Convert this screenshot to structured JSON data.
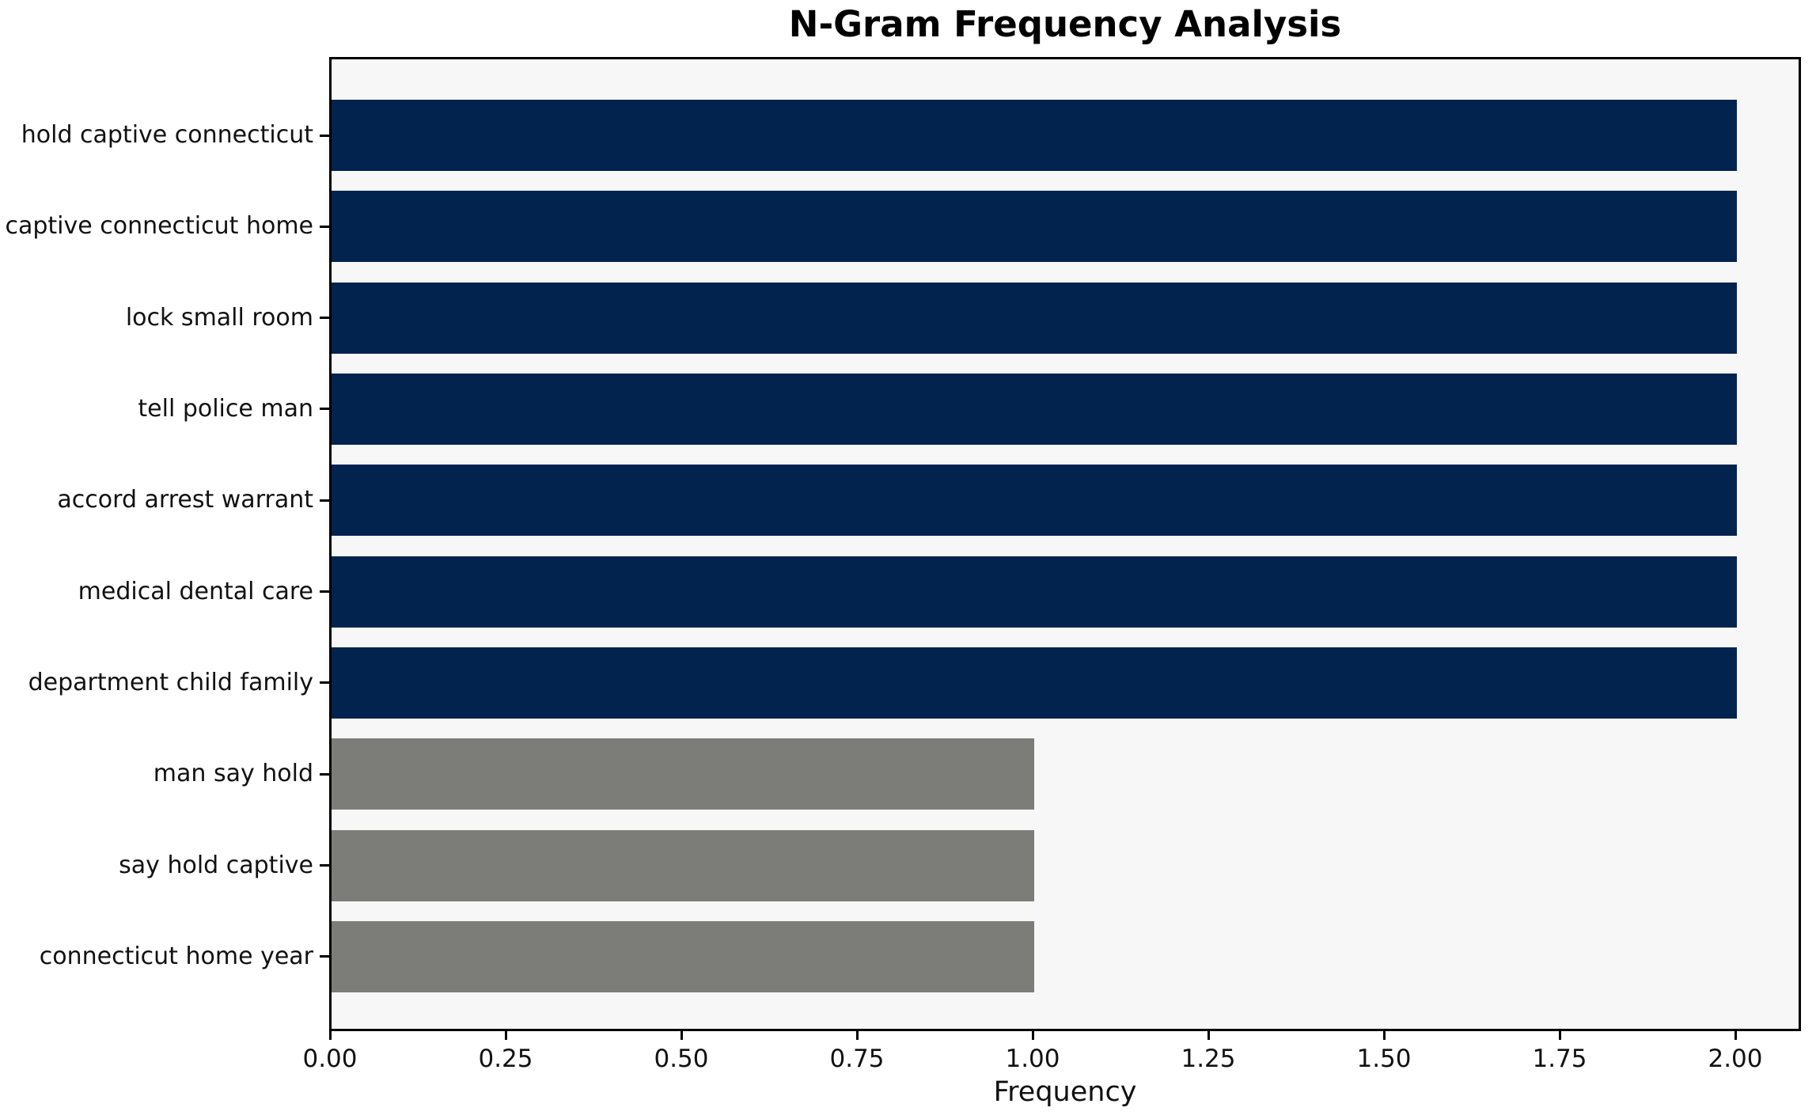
{
  "chart_data": {
    "type": "bar",
    "orientation": "horizontal",
    "title": "N-Gram Frequency Analysis",
    "xlabel": "Frequency",
    "ylabel": "",
    "categories": [
      "hold captive connecticut",
      "captive connecticut home",
      "lock small room",
      "tell police man",
      "accord arrest warrant",
      "medical dental care",
      "department child family",
      "man say hold",
      "say hold captive",
      "connecticut home year"
    ],
    "values": [
      2,
      2,
      2,
      2,
      2,
      2,
      2,
      1,
      1,
      1
    ],
    "bar_colors": [
      "#02234d",
      "#02234d",
      "#02234d",
      "#02234d",
      "#02234d",
      "#02234d",
      "#02234d",
      "#7c7c79",
      "#7c7c79",
      "#7c7c79"
    ],
    "xticks": {
      "values": [
        0,
        0.25,
        0.5,
        0.75,
        1.0,
        1.25,
        1.5,
        1.75,
        2.0
      ],
      "labels": [
        "0.00",
        "0.25",
        "0.50",
        "0.75",
        "1.00",
        "1.25",
        "1.50",
        "1.75",
        "2.00"
      ]
    },
    "xlim": [
      0,
      2.095
    ],
    "grid": false,
    "legend": null,
    "colors": {
      "high_frequency_bar": "#02234d",
      "low_frequency_bar": "#7c7c79",
      "plot_background": "#f7f7f7",
      "figure_background": "#ffffff",
      "spine": "#000000",
      "text": "#111111"
    }
  }
}
